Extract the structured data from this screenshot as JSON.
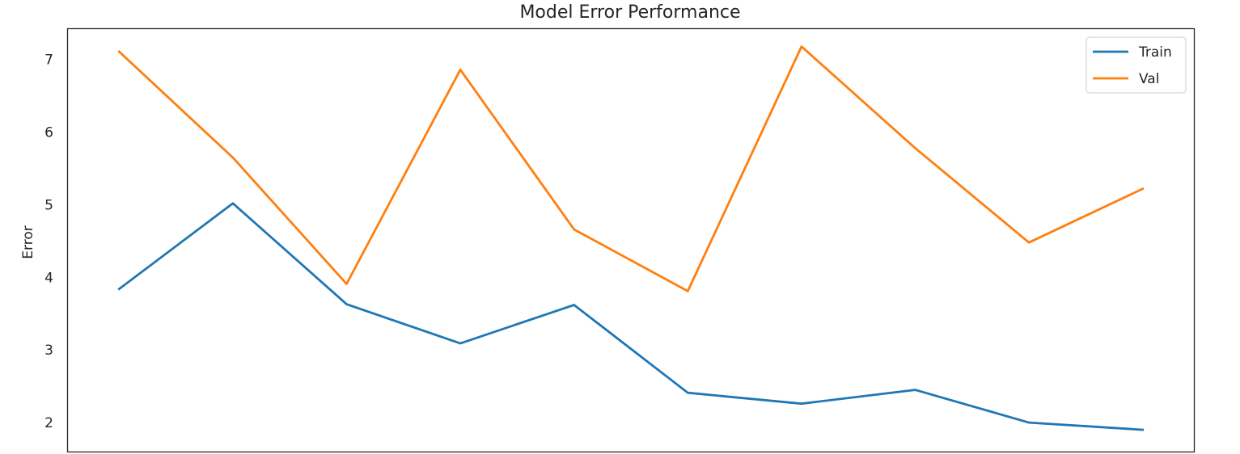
{
  "chart_data": {
    "type": "line",
    "title": "Model Error Performance",
    "xlabel": "",
    "ylabel": "Error",
    "x": [
      0,
      1,
      2,
      3,
      4,
      5,
      6,
      7,
      8,
      9
    ],
    "xlim": [
      -0.45,
      9.45
    ],
    "ylim": [
      1.6,
      7.42
    ],
    "yticks": [
      2,
      3,
      4,
      5,
      6,
      7
    ],
    "grid": false,
    "legend_position": "upper right",
    "series": [
      {
        "name": "Train",
        "color": "#1f77b4",
        "values": [
          3.84,
          5.02,
          3.63,
          3.09,
          3.62,
          2.41,
          2.26,
          2.45,
          2.0,
          1.9
        ]
      },
      {
        "name": "Val",
        "color": "#ff7f0e",
        "values": [
          7.11,
          5.65,
          3.91,
          6.86,
          4.66,
          3.81,
          7.18,
          5.78,
          4.48,
          5.22
        ]
      }
    ]
  }
}
